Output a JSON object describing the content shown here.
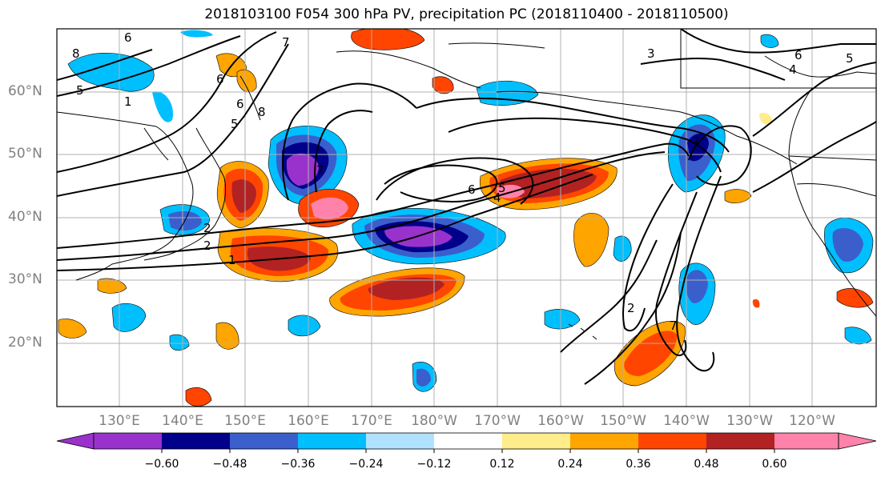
{
  "title": "2018103100 F054 300 hPa PV, precipitation PC (2018110400 - 2018110500)",
  "lat_labels": [
    "60°N",
    "50°N",
    "40°N",
    "30°N",
    "20°N"
  ],
  "lon_labels": [
    "130°E",
    "140°E",
    "150°E",
    "160°E",
    "170°E",
    "180°W",
    "170°W",
    "160°W",
    "150°W",
    "140°W",
    "130°W",
    "120°W"
  ],
  "colorbar": {
    "labels": [
      "−0.60",
      "−0.48",
      "−0.36",
      "−0.24",
      "−0.12",
      "0.12",
      "0.24",
      "0.36",
      "0.48",
      "0.60"
    ],
    "colors": [
      "#9932CC",
      "#00008B",
      "#3A5FCD",
      "#00BFFF",
      "#B0E2FF",
      "#FFFFFF",
      "#FFEC8B",
      "#FFA500",
      "#FF4500",
      "#B22222",
      "#FF82AB"
    ]
  },
  "contour_labels": [
    "8",
    "6",
    "5",
    "1",
    "7",
    "6",
    "6",
    "5",
    "8",
    "2",
    "2",
    "1",
    "7",
    "6",
    "4",
    "5",
    "3",
    "7",
    "6",
    "4",
    "5",
    "2",
    "7"
  ],
  "layer_info": {
    "field": "300 hPa PV",
    "shading": "precipitation PC",
    "init": "2018103100",
    "forecast_hour": "F054",
    "valid_range": "2018110400 - 2018110500"
  }
}
